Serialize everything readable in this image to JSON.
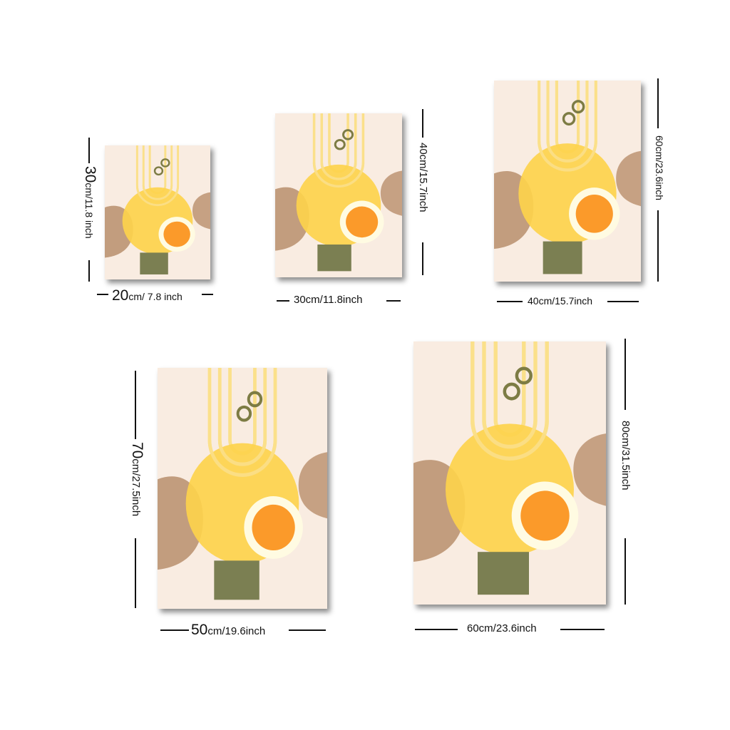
{
  "colors": {
    "background": "#f9ece1",
    "sun": "#fdd24c",
    "arch": "#fbe08a",
    "brown_blob": "#b98f6c",
    "orange_circle": "#fb9a2a",
    "ring": "#fffbe2",
    "olive_rect": "#7b7f52",
    "small_rings": "#7d7c44"
  },
  "sizes": [
    {
      "width_number": "20",
      "width_rest": "cm/ 7.8 inch",
      "height_number": "30",
      "height_rest": "cm/11.8 inch"
    },
    {
      "width_number": "",
      "width_rest": "30cm/11.8inch",
      "height_number": "",
      "height_rest": "40cm/15.7inch"
    },
    {
      "width_number": "",
      "width_rest": "40cm/15.7inch",
      "height_number": "",
      "height_rest": "60cm/23.6inch"
    },
    {
      "width_number": "50",
      "width_rest": "cm/19.6inch",
      "height_number": "70",
      "height_rest": "cm/27.5inch"
    },
    {
      "width_number": "",
      "width_rest": "60cm/23.6inch",
      "height_number": "",
      "height_rest": "80cm/31.5inch"
    }
  ]
}
